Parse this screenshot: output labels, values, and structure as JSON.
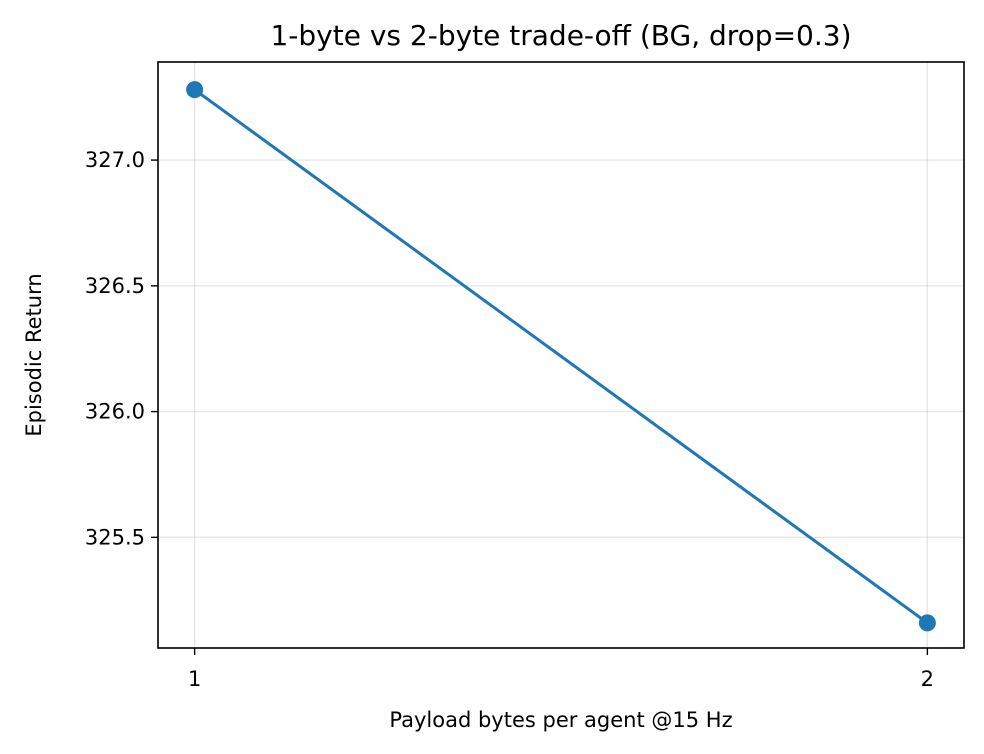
{
  "chart_data": {
    "type": "line",
    "title": "1-byte vs 2-byte trade-off (BG, drop=0.3)",
    "xlabel": "Payload bytes per agent @15 Hz",
    "ylabel": "Episodic Return",
    "x": [
      1,
      2
    ],
    "x_ticks": [
      1,
      2
    ],
    "x_tick_labels": [
      "1",
      "2"
    ],
    "xlim": [
      0.95,
      2.05
    ],
    "y_ticks": [
      325.5,
      326.0,
      326.5,
      327.0
    ],
    "y_tick_labels": [
      "325.5",
      "326.0",
      "326.5",
      "327.0"
    ],
    "ylim": [
      325.06,
      327.39
    ],
    "grid": true,
    "series": [
      {
        "values": [
          327.28,
          325.16
        ],
        "color": "#1f77b4",
        "marker": "circle"
      }
    ]
  }
}
